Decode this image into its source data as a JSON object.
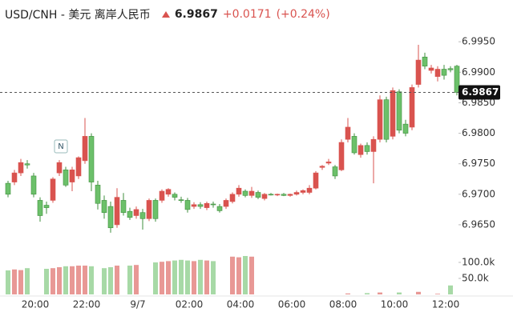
{
  "chart_data": {
    "type": "candlestick",
    "title": "USD/CNH - 美元 离岸人民币",
    "price": {
      "value": 6.9867,
      "label": "6.9867"
    },
    "change": {
      "value": 0.0171,
      "label": "+0.0171"
    },
    "change_pct": {
      "value": 0.24,
      "label": "(+0.24%)"
    },
    "annotation": "N",
    "up_color": "#d9534f",
    "down_color": "#6cc06a",
    "categories": [
      null,
      null,
      null,
      null,
      "20:00",
      null,
      null,
      null,
      null,
      null,
      null,
      null,
      "22:00",
      null,
      null,
      null,
      null,
      null,
      null,
      null,
      "9/7",
      null,
      null,
      null,
      null,
      null,
      null,
      null,
      "02:00",
      null,
      null,
      null,
      null,
      null,
      null,
      null,
      "04:00",
      null,
      null,
      null,
      null,
      null,
      null,
      null,
      "06:00",
      null,
      null,
      null,
      null,
      null,
      null,
      null,
      "08:00",
      null,
      null,
      null,
      null,
      null,
      null,
      null,
      "10:00",
      null,
      null,
      null,
      null,
      null,
      null,
      null,
      "12:00",
      null,
      null
    ],
    "open": [
      6.9718,
      6.972,
      6.9735,
      6.975,
      6.973,
      6.969,
      6.9682,
      6.969,
      6.9735,
      6.974,
      6.972,
      6.973,
      6.9755,
      6.9795,
      6.9715,
      6.969,
      6.968,
      6.965,
      6.969,
      6.9672,
      6.9665,
      6.967,
      6.966,
      6.969,
      6.969,
      6.97,
      6.97,
      6.9691,
      6.969,
      6.968,
      6.9683,
      6.9678,
      6.9684,
      6.968,
      6.968,
      6.9688,
      6.97,
      6.9705,
      6.9698,
      6.9703,
      6.9693,
      6.97,
      6.9699,
      6.97,
      6.9698,
      6.97,
      6.9703,
      6.9703,
      6.971,
      6.9744,
      6.9751,
      6.9745,
      6.974,
      6.979,
      6.9795,
      6.9765,
      6.978,
      6.977,
      6.979,
      6.9855,
      6.9795,
      6.9868,
      6.9815,
      6.981,
      6.988,
      6.9925,
      6.9903,
      6.9893,
      6.9905,
      6.9906,
      6.991
    ],
    "high": [
      6.9722,
      6.974,
      6.9758,
      6.9756,
      6.9735,
      6.9695,
      6.9688,
      6.9728,
      6.9756,
      6.9745,
      6.9745,
      6.9762,
      6.9825,
      6.98,
      6.9722,
      6.9698,
      6.9688,
      6.971,
      6.9702,
      6.9678,
      6.968,
      6.9676,
      6.9693,
      6.9693,
      6.9708,
      6.971,
      6.9703,
      6.9696,
      6.9694,
      6.9687,
      6.9687,
      6.9688,
      6.9688,
      6.9684,
      6.9693,
      6.9703,
      6.9715,
      6.9708,
      6.9712,
      6.9706,
      6.9702,
      6.9702,
      6.9701,
      6.9702,
      6.9701,
      6.9706,
      6.9708,
      6.9715,
      6.9738,
      6.9748,
      6.9758,
      6.9748,
      6.979,
      6.9825,
      6.98,
      6.9783,
      6.9785,
      6.9795,
      6.9862,
      6.986,
      6.9875,
      6.9872,
      6.9822,
      6.988,
      6.9945,
      6.9932,
      6.9912,
      6.991,
      6.9912,
      6.991,
      6.9912
    ],
    "low": [
      6.9695,
      6.9715,
      6.973,
      6.9742,
      6.9695,
      6.9655,
      6.9668,
      6.9686,
      6.973,
      6.9712,
      6.9705,
      6.9725,
      6.975,
      6.9705,
      6.9675,
      6.966,
      6.9637,
      6.9645,
      6.9665,
      6.9658,
      6.966,
      6.9642,
      6.9656,
      6.9655,
      6.9686,
      6.9696,
      6.969,
      6.9686,
      6.967,
      6.9676,
      6.9676,
      6.9674,
      6.9678,
      6.967,
      6.9676,
      6.9685,
      6.9696,
      6.9695,
      6.9694,
      6.9692,
      6.969,
      6.9698,
      6.9697,
      6.9697,
      6.9696,
      6.9698,
      6.97,
      6.97,
      6.9708,
      6.974,
      6.9748,
      6.9725,
      6.9738,
      6.9785,
      6.9765,
      6.976,
      6.9765,
      6.9718,
      6.9785,
      6.9785,
      6.979,
      6.98,
      6.9795,
      6.9805,
      6.9875,
      6.9905,
      6.9898,
      6.9885,
      6.9888,
      6.99,
      6.9862
    ],
    "close": [
      6.97,
      6.9735,
      6.9752,
      6.9748,
      6.97,
      6.9665,
      6.9678,
      6.9725,
      6.9752,
      6.9715,
      6.974,
      6.976,
      6.9795,
      6.972,
      6.9685,
      6.967,
      6.9645,
      6.9695,
      6.967,
      6.9662,
      6.9675,
      6.966,
      6.969,
      6.966,
      6.9705,
      6.9708,
      6.9695,
      6.969,
      6.9675,
      6.9683,
      6.968,
      6.9685,
      6.9683,
      6.9673,
      6.969,
      6.97,
      6.971,
      6.9698,
      6.9705,
      6.9695,
      6.97,
      6.9699,
      6.97,
      6.9698,
      6.97,
      6.9703,
      6.9706,
      6.971,
      6.9735,
      6.9746,
      6.9753,
      6.973,
      6.9785,
      6.981,
      6.9768,
      6.978,
      6.977,
      6.979,
      6.9855,
      6.979,
      6.987,
      6.9805,
      6.98,
      6.9875,
      6.992,
      6.991,
      6.9907,
      6.9905,
      6.9895,
      6.9904,
      6.9867
    ],
    "ylim": [
      6.9625,
      6.9966
    ],
    "yticks": [
      {
        "value": 6.965,
        "label": "6.9650"
      },
      {
        "value": 6.97,
        "label": "6.9700"
      },
      {
        "value": 6.975,
        "label": "6.9750"
      },
      {
        "value": 6.98,
        "label": "6.9800"
      },
      {
        "value": 6.985,
        "label": "6.9850"
      },
      {
        "value": 6.99,
        "label": "6.9900"
      },
      {
        "value": 6.995,
        "label": "6.9950"
      }
    ],
    "volume": {
      "values": [
        75000,
        78000,
        76000,
        82000,
        0,
        0,
        80000,
        82000,
        85000,
        88000,
        88000,
        90000,
        90000,
        88000,
        0,
        82000,
        85000,
        90000,
        0,
        90000,
        92000,
        0,
        0,
        100000,
        102000,
        104000,
        106000,
        108000,
        106000,
        104000,
        108000,
        106000,
        104000,
        0,
        0,
        118000,
        116000,
        120000,
        118000,
        0,
        0,
        0,
        0,
        0,
        0,
        0,
        0,
        0,
        0,
        0,
        0,
        0,
        0,
        3000,
        0,
        0,
        4000,
        0,
        6000,
        0,
        0,
        6000,
        0,
        0,
        8000,
        0,
        0,
        2000,
        0,
        28000,
        0
      ],
      "ylim": [
        0,
        125000
      ],
      "yticks": [
        {
          "value": 50000,
          "label": "50.0k"
        },
        {
          "value": 100000,
          "label": "100.0k"
        }
      ]
    }
  }
}
